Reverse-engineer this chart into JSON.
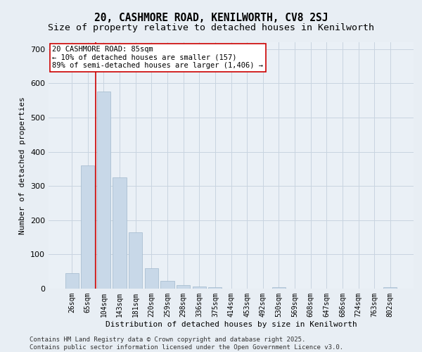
{
  "title": "20, CASHMORE ROAD, KENILWORTH, CV8 2SJ",
  "subtitle": "Size of property relative to detached houses in Kenilworth",
  "xlabel": "Distribution of detached houses by size in Kenilworth",
  "ylabel": "Number of detached properties",
  "bin_labels": [
    "26sqm",
    "65sqm",
    "104sqm",
    "143sqm",
    "181sqm",
    "220sqm",
    "259sqm",
    "298sqm",
    "336sqm",
    "375sqm",
    "414sqm",
    "453sqm",
    "492sqm",
    "530sqm",
    "569sqm",
    "608sqm",
    "647sqm",
    "686sqm",
    "724sqm",
    "763sqm",
    "802sqm"
  ],
  "bar_heights": [
    45,
    360,
    575,
    325,
    165,
    60,
    22,
    11,
    6,
    5,
    0,
    0,
    0,
    5,
    0,
    0,
    0,
    0,
    0,
    0,
    5
  ],
  "bar_color": "#c8d8e8",
  "bar_edgecolor": "#a0b8cc",
  "bar_width": 0.85,
  "vline_color": "#cc0000",
  "ylim": [
    0,
    720
  ],
  "yticks": [
    0,
    100,
    200,
    300,
    400,
    500,
    600,
    700
  ],
  "annotation_text": "20 CASHMORE ROAD: 85sqm\n← 10% of detached houses are smaller (157)\n89% of semi-detached houses are larger (1,406) →",
  "annotation_box_color": "#ffffff",
  "annotation_box_edgecolor": "#cc0000",
  "footnote1": "Contains HM Land Registry data © Crown copyright and database right 2025.",
  "footnote2": "Contains public sector information licensed under the Open Government Licence v3.0.",
  "bg_color": "#e8eef4",
  "plot_bg_color": "#eaf0f6",
  "grid_color": "#c8d4e0",
  "title_fontsize": 10.5,
  "subtitle_fontsize": 9.5,
  "axis_label_fontsize": 8,
  "tick_fontsize": 7,
  "annotation_fontsize": 7.5,
  "footnote_fontsize": 6.5
}
